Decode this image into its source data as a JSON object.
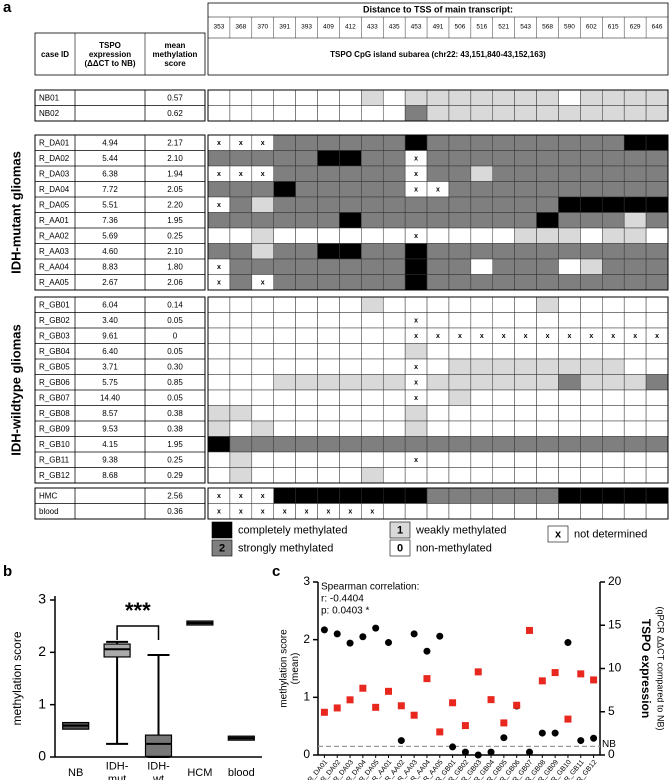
{
  "table": {
    "panel_label": "a",
    "distance_title": "Distance to TSS of main transcript:",
    "distances": [
      353,
      368,
      370,
      391,
      393,
      409,
      412,
      433,
      435,
      453,
      491,
      506,
      516,
      521,
      543,
      568,
      590,
      602,
      615,
      629,
      646
    ],
    "headers": [
      "case ID",
      "TSPO\nexpression\n(ΔΔCT to NB)",
      "mean\nmethylation\nscore",
      "TSPO CpG island subarea (chr22: 43,151,840-43,152,163)"
    ],
    "level_colors": {
      "0": "#ffffff",
      "1": "#d9d9d9",
      "2": "#7f7f7f",
      "3": "#000000",
      "x": "#ffffff"
    },
    "blocks": [
      {
        "rows": [
          {
            "case_id": "NB01",
            "tspo": "",
            "score": "0.57",
            "cells": [
              0,
              0,
              0,
              0,
              0,
              0,
              0,
              1,
              0,
              1,
              1,
              1,
              1,
              1,
              1,
              1,
              0,
              1,
              1,
              1,
              1
            ]
          },
          {
            "case_id": "NB02",
            "tspo": "",
            "score": "0.62",
            "cells": [
              0,
              0,
              0,
              0,
              0,
              0,
              0,
              0,
              0,
              2,
              1,
              1,
              1,
              1,
              1,
              1,
              1,
              1,
              1,
              1,
              1
            ]
          }
        ]
      },
      {
        "label": "IDH-mutant gliomas",
        "rows": [
          {
            "case_id": "R_DA01",
            "tspo": "4.94",
            "score": "2.17",
            "cells": [
              "x",
              "x",
              "x",
              2,
              2,
              2,
              2,
              2,
              2,
              3,
              2,
              2,
              2,
              2,
              2,
              2,
              2,
              2,
              2,
              3,
              3
            ]
          },
          {
            "case_id": "R_DA02",
            "tspo": "5.44",
            "score": "2.10",
            "cells": [
              2,
              2,
              2,
              2,
              2,
              3,
              3,
              2,
              2,
              "x",
              2,
              2,
              2,
              2,
              2,
              2,
              2,
              2,
              2,
              2,
              2
            ]
          },
          {
            "case_id": "R_DA03",
            "tspo": "6.38",
            "score": "1.94",
            "cells": [
              "x",
              "x",
              "x",
              2,
              2,
              2,
              2,
              2,
              2,
              "x",
              2,
              2,
              1,
              2,
              2,
              2,
              2,
              2,
              2,
              2,
              2
            ]
          },
          {
            "case_id": "R_DA04",
            "tspo": "7.72",
            "score": "2.05",
            "cells": [
              2,
              2,
              2,
              3,
              2,
              2,
              2,
              2,
              2,
              "x",
              "x",
              2,
              2,
              2,
              2,
              2,
              2,
              2,
              2,
              2,
              2
            ]
          },
          {
            "case_id": "R_DA05",
            "tspo": "5.51",
            "score": "2.20",
            "cells": [
              "x",
              2,
              1,
              2,
              2,
              2,
              2,
              2,
              2,
              2,
              2,
              2,
              2,
              2,
              2,
              2,
              3,
              3,
              3,
              3,
              3
            ]
          },
          {
            "case_id": "R_AA01",
            "tspo": "7.36",
            "score": "1.95",
            "cells": [
              2,
              2,
              2,
              2,
              2,
              2,
              3,
              2,
              2,
              2,
              2,
              2,
              2,
              2,
              2,
              3,
              2,
              2,
              2,
              1,
              2
            ]
          },
          {
            "case_id": "R_AA02",
            "tspo": "5.69",
            "score": "0.25",
            "cells": [
              0,
              0,
              1,
              0,
              0,
              0,
              0,
              0,
              0,
              "x",
              0,
              0,
              0,
              0,
              1,
              1,
              1,
              0,
              1,
              1,
              0
            ]
          },
          {
            "case_id": "R_AA03",
            "tspo": "4.60",
            "score": "2.10",
            "cells": [
              2,
              2,
              1,
              2,
              2,
              3,
              3,
              2,
              2,
              3,
              2,
              2,
              2,
              2,
              2,
              2,
              2,
              2,
              2,
              2,
              2
            ]
          },
          {
            "case_id": "R_AA04",
            "tspo": "8.83",
            "score": "1.80",
            "cells": [
              "x",
              2,
              2,
              2,
              2,
              2,
              2,
              2,
              2,
              3,
              2,
              2,
              0,
              2,
              2,
              2,
              0,
              1,
              2,
              2,
              2
            ]
          },
          {
            "case_id": "R_AA05",
            "tspo": "2.67",
            "score": "2.06",
            "cells": [
              "x",
              2,
              "x",
              2,
              2,
              2,
              2,
              2,
              2,
              3,
              2,
              2,
              2,
              2,
              2,
              2,
              2,
              2,
              2,
              2,
              2
            ]
          }
        ]
      },
      {
        "label": "IDH-wildtype gliomas",
        "rows": [
          {
            "case_id": "R_GB01",
            "tspo": "6.04",
            "score": "0.14",
            "cells": [
              0,
              0,
              0,
              0,
              0,
              0,
              0,
              1,
              0,
              0,
              0,
              0,
              0,
              0,
              0,
              1,
              0,
              0,
              0,
              0,
              0
            ]
          },
          {
            "case_id": "R_GB02",
            "tspo": "3.40",
            "score": "0.05",
            "cells": [
              0,
              0,
              0,
              0,
              0,
              0,
              0,
              0,
              0,
              "x",
              0,
              0,
              0,
              0,
              0,
              0,
              0,
              0,
              0,
              0,
              0
            ]
          },
          {
            "case_id": "R_GB03",
            "tspo": "9.61",
            "score": "0",
            "cells": [
              0,
              0,
              0,
              0,
              0,
              0,
              0,
              0,
              0,
              "x",
              "x",
              "x",
              "x",
              "x",
              "x",
              "x",
              "x",
              "x",
              "x",
              "x",
              "x"
            ]
          },
          {
            "case_id": "R_GB04",
            "tspo": "6.40",
            "score": "0.05",
            "cells": [
              0,
              0,
              0,
              0,
              0,
              0,
              0,
              0,
              0,
              1,
              0,
              0,
              0,
              0,
              0,
              0,
              0,
              0,
              0,
              0,
              0
            ]
          },
          {
            "case_id": "R_GB05",
            "tspo": "3.71",
            "score": "0.30",
            "cells": [
              0,
              0,
              0,
              0,
              0,
              0,
              0,
              0,
              0,
              "x",
              0,
              1,
              1,
              1,
              1,
              1,
              1,
              1,
              1,
              0,
              0
            ]
          },
          {
            "case_id": "R_GB06",
            "tspo": "5.75",
            "score": "0.85",
            "cells": [
              0,
              0,
              0,
              1,
              1,
              1,
              1,
              1,
              1,
              "x",
              1,
              1,
              1,
              1,
              1,
              1,
              2,
              1,
              1,
              1,
              2
            ]
          },
          {
            "case_id": "R_GB07",
            "tspo": "14.40",
            "score": "0.05",
            "cells": [
              0,
              0,
              0,
              0,
              0,
              0,
              0,
              0,
              0,
              "x",
              0,
              1,
              0,
              0,
              0,
              0,
              0,
              0,
              0,
              0,
              0
            ]
          },
          {
            "case_id": "R_GB08",
            "tspo": "8.57",
            "score": "0.38",
            "cells": [
              1,
              1,
              0,
              0,
              0,
              0,
              0,
              0,
              0,
              1,
              0,
              0,
              0,
              0,
              0,
              0,
              0,
              0,
              0,
              0,
              0
            ]
          },
          {
            "case_id": "R_GB09",
            "tspo": "9.53",
            "score": "0.38",
            "cells": [
              1,
              0,
              1,
              0,
              0,
              0,
              0,
              0,
              0,
              1,
              0,
              0,
              0,
              0,
              0,
              0,
              0,
              0,
              0,
              0,
              0
            ]
          },
          {
            "case_id": "R_GB10",
            "tspo": "4.15",
            "score": "1.95",
            "cells": [
              3,
              2,
              2,
              2,
              2,
              2,
              2,
              2,
              2,
              2,
              2,
              2,
              2,
              2,
              2,
              2,
              2,
              2,
              2,
              2,
              2
            ]
          },
          {
            "case_id": "R_GB11",
            "tspo": "9.38",
            "score": "0.25",
            "cells": [
              0,
              1,
              0,
              0,
              0,
              0,
              0,
              0,
              0,
              "x",
              0,
              0,
              0,
              0,
              0,
              0,
              0,
              0,
              0,
              0,
              0
            ]
          },
          {
            "case_id": "R_GB12",
            "tspo": "8.68",
            "score": "0.29",
            "cells": [
              0,
              1,
              0,
              0,
              0,
              0,
              0,
              1,
              0,
              0,
              0,
              0,
              0,
              0,
              0,
              0,
              0,
              0,
              0,
              0,
              0
            ]
          }
        ]
      },
      {
        "rows": [
          {
            "case_id": "HMC",
            "tspo": "",
            "score": "2.56",
            "cells": [
              "x",
              "x",
              "x",
              3,
              3,
              3,
              3,
              3,
              3,
              3,
              2,
              2,
              2,
              2,
              2,
              2,
              3,
              3,
              3,
              3,
              3
            ]
          },
          {
            "case_id": "blood",
            "tspo": "",
            "score": "0.36",
            "cells": [
              "x",
              "x",
              "x",
              "x",
              "x",
              "x",
              "x",
              "x",
              0,
              0,
              0,
              0,
              0,
              0,
              0,
              0,
              0,
              0,
              0,
              0,
              0
            ]
          }
        ]
      }
    ],
    "legend": [
      {
        "key": "3",
        "label": "completely methylated"
      },
      {
        "key": "2",
        "label": "strongly methylated"
      },
      {
        "key": "1",
        "label": "weakly methylated"
      },
      {
        "key": "0",
        "label": "non-methylated"
      },
      {
        "key": "x",
        "label": "not determined"
      }
    ]
  },
  "chart_data": [
    {
      "type": "box",
      "panel_label": "b",
      "ylabel": "methylation score",
      "categories": [
        "NB",
        "IDH-\nmut",
        "IDH-\nwt",
        "HCM",
        "blood"
      ],
      "min": [
        0.57,
        0.25,
        0,
        2.56,
        0.36
      ],
      "q1": [
        0.57,
        1.95,
        0.05,
        2.56,
        0.36
      ],
      "median": [
        0.6,
        2.06,
        0.25,
        2.56,
        0.36
      ],
      "q3": [
        0.62,
        2.12,
        0.38,
        2.56,
        0.36
      ],
      "max": [
        0.62,
        2.2,
        1.95,
        2.56,
        0.36
      ],
      "box_colors": [
        "#555555",
        "#aaaaaa",
        "#777777",
        "#555555",
        "#555555"
      ],
      "annotation": "***",
      "ylim": [
        0,
        3
      ],
      "yticks": [
        0,
        1,
        2,
        3
      ]
    },
    {
      "type": "scatter",
      "panel_label": "c",
      "ylabel": "methylation score\n(mean)",
      "y2label": "TSPO expression",
      "y2sublabel": "(qPCR ΔΔCT compared to NB)",
      "annotations": [
        "Spearman correlation:",
        "r: -0.4404",
        "p: 0.0403 *"
      ],
      "categories": [
        "R_DA01",
        "R_DA02",
        "R_DA03",
        "R_DA04",
        "R_DA05",
        "R_AA01",
        "R_AA02",
        "R_AA03",
        "R_AA04",
        "R_AA05",
        "R_GB01",
        "R_GB02",
        "R_GB03",
        "R_GB04",
        "R_GB05",
        "R_GB06",
        "R_GB07",
        "R_GB08",
        "R_GB09",
        "R_GB10",
        "R_GB11",
        "R_GB12"
      ],
      "series": [
        {
          "color": "#000000",
          "marker": "circle",
          "values": [
            2.17,
            2.1,
            1.94,
            2.05,
            2.2,
            1.95,
            0.25,
            2.1,
            1.8,
            2.06,
            0.14,
            0.05,
            0,
            0.05,
            0.3,
            0.85,
            0.05,
            0.38,
            0.38,
            1.95,
            0.25,
            0.29
          ]
        },
        {
          "color": "#e8281e",
          "marker": "square",
          "axis": "y2",
          "values": [
            4.94,
            5.44,
            6.38,
            7.72,
            5.51,
            7.36,
            5.69,
            4.6,
            8.83,
            2.67,
            6.04,
            3.4,
            9.61,
            6.4,
            3.71,
            5.75,
            14.4,
            8.57,
            9.53,
            4.15,
            9.38,
            8.68
          ]
        }
      ],
      "reference_line": {
        "value": 1,
        "axis": "y2",
        "label": "NB",
        "color": "#999999"
      },
      "ylim": [
        0,
        3
      ],
      "yticks": [
        0,
        1,
        2,
        3
      ],
      "y2lim": [
        0,
        20
      ],
      "y2ticks": [
        0,
        5,
        10,
        15,
        20
      ]
    }
  ]
}
